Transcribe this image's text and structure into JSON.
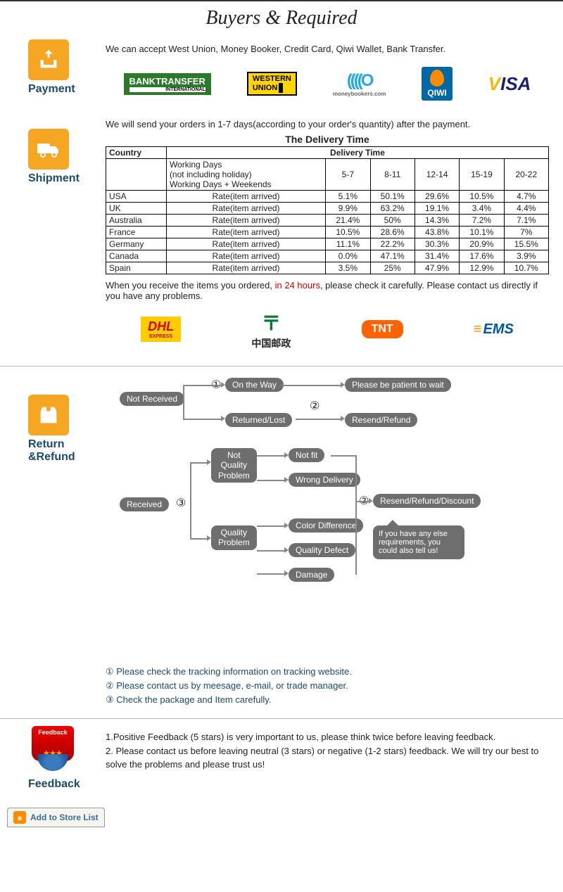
{
  "page_title": "Buyers & Required",
  "colors": {
    "accent_orange": "#f5a623",
    "heading_blue": "#1a4a6e",
    "node_gray": "#6e6e6e",
    "alert_red": "#d00"
  },
  "payment": {
    "label": "Payment",
    "text": "We can accept West Union, Money Booker, Credit Card, Qiwi Wallet, Bank Transfer.",
    "methods": [
      {
        "name": "Bank Transfer",
        "sub": "INTERNATIONAL"
      },
      {
        "name_l1": "WESTERN",
        "name_l2": "UNION"
      },
      {
        "name": "moneybookers.com"
      },
      {
        "name": "QIWI"
      },
      {
        "name": "VISA"
      }
    ]
  },
  "shipment": {
    "label": "Shipment",
    "intro": "We will send your orders in 1-7 days(according to your order's quantity) after the payment.",
    "table_title": "The Delivery Time",
    "col_country": "Country",
    "col_delivery": "Delivery Time",
    "working_days": "Working Days\n(not including holiday)\nWorking Days + Weekends",
    "ranges": [
      "5-7",
      "8-11",
      "12-14",
      "15-19",
      "20-22"
    ],
    "rate_label": "Rate(item arrived)",
    "rows": [
      {
        "country": "USA",
        "vals": [
          "5.1%",
          "50.1%",
          "29.6%",
          "10.5%",
          "4.7%"
        ]
      },
      {
        "country": "UK",
        "vals": [
          "9.9%",
          "63.2%",
          "19.1%",
          "3.4%",
          "4.4%"
        ]
      },
      {
        "country": "Australia",
        "vals": [
          "21.4%",
          "50%",
          "14.3%",
          "7.2%",
          "7.1%"
        ]
      },
      {
        "country": "France",
        "vals": [
          "10.5%",
          "28.6%",
          "43.8%",
          "10.1%",
          "7%"
        ]
      },
      {
        "country": "Germany",
        "vals": [
          "11.1%",
          "22.2%",
          "30.3%",
          "20.9%",
          "15.5%"
        ]
      },
      {
        "country": "Canada",
        "vals": [
          "0.0%",
          "47.1%",
          "31.4%",
          "17.6%",
          "3.9%"
        ]
      },
      {
        "country": "Spain",
        "vals": [
          "3.5%",
          "25%",
          "47.9%",
          "12.9%",
          "10.7%"
        ]
      }
    ],
    "note_pre": "When you receive the items you ordered, ",
    "note_red": "in 24 hours",
    "note_post": ", please check it carefully. Please contact us directly if you have any problems.",
    "carriers": {
      "dhl": "DHL",
      "dhl_sub": "EXPRESS",
      "chinapost": "中国邮政",
      "tnt": "TNT",
      "ems": "EMS"
    }
  },
  "return": {
    "label": "Return &Refund",
    "nodes": {
      "not_received": "Not Received",
      "on_way": "On the Way",
      "patient": "Please be patient to wait",
      "returned": "Returned/Lost",
      "resend1": "Resend/Refund",
      "received": "Received",
      "not_quality": "Not\nQuality\nProblem",
      "quality": "Quality\nProblem",
      "not_fit": "Not fit",
      "wrong": "Wrong Delivery",
      "color": "Color Difference",
      "defect": "Quality Defect",
      "damage": "Damage",
      "resend2": "Resend/Refund/Discount",
      "speech": "If you have any else requirements, you could also tell us!"
    },
    "circles": {
      "c1": "①",
      "c2": "②",
      "c3": "③"
    },
    "notes": [
      "① Please check the tracking information on tracking website.",
      "② Please contact us by meesage, e-mail, or trade manager.",
      "③ Check the package and Item carefully."
    ]
  },
  "feedback": {
    "label": "Feedback",
    "badge_text": "Feedback",
    "lines": [
      "1.Positive Feedback (5 stars) is very important to us, please think twice before leaving feedback.",
      "2. Please contact us before leaving neutral (3 stars) or negative (1-2 stars) feedback. We will try our best to solve the problems and please trust us!"
    ]
  },
  "store_button": "Add to Store List"
}
